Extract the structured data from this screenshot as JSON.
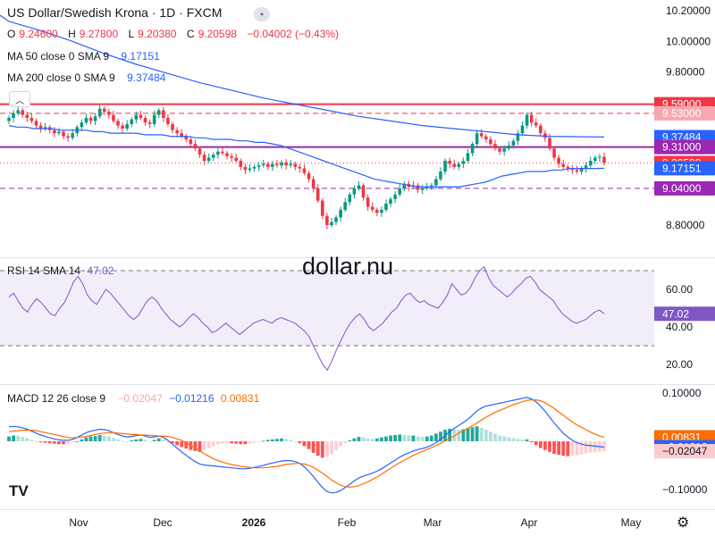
{
  "header": {
    "title": "US Dollar/Swedish Krona · 1D · FXCM",
    "ohlc": {
      "o_label": "O",
      "o": "9.24600",
      "h_label": "H",
      "h": "9.27800",
      "l_label": "L",
      "l": "9.20380",
      "c_label": "C",
      "c": "9.20598",
      "change": "−0.04002 (−0.43%)"
    },
    "ma50": {
      "label": "MA 50 close 0 SMA 9",
      "value": "9.17151"
    },
    "ma200": {
      "label": "MA 200 close 0 SMA 9",
      "value": "9.37484"
    }
  },
  "watermark": "dollar.nu",
  "logo_text": "TV",
  "colors": {
    "up": "#089981",
    "down": "#f23645",
    "ma50": "#2962ff",
    "ma200": "#2962ff",
    "rsi": "#7e57c2",
    "macd": "#2962ff",
    "signal": "#ff6d00"
  },
  "chart_data": [
    {
      "type": "candlestick",
      "title": "US Dollar/Swedish Krona · 1D · FXCM",
      "ylim": [
        8.72,
        10.22
      ],
      "y_ticks": [
        "10.20000",
        "10.00000",
        "9.80000",
        "8.80000"
      ],
      "x_ticks": [
        "Nov",
        "Dec",
        "2026",
        "Feb",
        "Mar",
        "Apr",
        "May"
      ],
      "price_labels": [
        {
          "text": "9.59000",
          "value": 9.59,
          "color": "#f23645"
        },
        {
          "text": "9.53000",
          "value": 9.53,
          "color": "#f7a8ae"
        },
        {
          "text": "9.37484",
          "value": 9.37484,
          "color": "#2962ff"
        },
        {
          "text": "9.31000",
          "value": 9.31,
          "color": "#9c27b0"
        },
        {
          "text": "9.20598",
          "value": 9.20598,
          "color": "#f23645"
        },
        {
          "text": "9.17151",
          "value": 9.17151,
          "color": "#2962ff"
        },
        {
          "text": "9.04000",
          "value": 9.04,
          "color": "#9c27b0"
        }
      ],
      "levels": [
        {
          "value": 9.59,
          "style": "solid",
          "color": "#f23645"
        },
        {
          "value": 9.53,
          "style": "dashed",
          "color": "#f23645"
        },
        {
          "value": 9.31,
          "style": "solid",
          "color": "#9c27b0"
        },
        {
          "value": 9.20598,
          "style": "dotted",
          "color": "#f23645"
        },
        {
          "value": 9.04,
          "style": "dashed",
          "color": "#9c27b0"
        }
      ],
      "closes": [
        9.5,
        9.53,
        9.55,
        9.52,
        9.5,
        9.48,
        9.45,
        9.43,
        9.44,
        9.42,
        9.4,
        9.41,
        9.38,
        9.37,
        9.4,
        9.44,
        9.47,
        9.5,
        9.48,
        9.51,
        9.56,
        9.54,
        9.52,
        9.48,
        9.45,
        9.43,
        9.46,
        9.49,
        9.52,
        9.5,
        9.47,
        9.46,
        9.52,
        9.55,
        9.5,
        9.46,
        9.42,
        9.4,
        9.38,
        9.36,
        9.33,
        9.3,
        9.26,
        9.22,
        9.24,
        9.26,
        9.28,
        9.27,
        9.25,
        9.24,
        9.22,
        9.18,
        9.16,
        9.17,
        9.18,
        9.19,
        9.2,
        9.18,
        9.2,
        9.19,
        9.21,
        9.19,
        9.2,
        9.18,
        9.17,
        9.14,
        9.1,
        9.04,
        8.96,
        8.86,
        8.8,
        8.82,
        8.85,
        8.9,
        8.95,
        9.0,
        9.04,
        9.06,
        8.98,
        8.92,
        8.9,
        8.88,
        8.9,
        8.94,
        8.97,
        9.0,
        9.04,
        9.07,
        9.05,
        9.06,
        9.03,
        9.04,
        9.05,
        9.06,
        9.1,
        9.15,
        9.22,
        9.2,
        9.18,
        9.2,
        9.22,
        9.27,
        9.33,
        9.4,
        9.38,
        9.36,
        9.33,
        9.3,
        9.28,
        9.3,
        9.32,
        9.35,
        9.4,
        9.45,
        9.52,
        9.47,
        9.45,
        9.4,
        9.37,
        9.3,
        9.24,
        9.2,
        9.18,
        9.17,
        9.16,
        9.15,
        9.17,
        9.19,
        9.22,
        9.24,
        9.246,
        9.20598
      ],
      "ma50": [
        9.45,
        9.44,
        9.44,
        9.43,
        9.43,
        9.43,
        9.42,
        9.42,
        9.42,
        9.42,
        9.41,
        9.41,
        9.4,
        9.4,
        9.4,
        9.4,
        9.39,
        9.39,
        9.39,
        9.38,
        9.38,
        9.38,
        9.37,
        9.37,
        9.36,
        9.36,
        9.36,
        9.35,
        9.35,
        9.34,
        9.34,
        9.33,
        9.32,
        9.3,
        9.28,
        9.26,
        9.24,
        9.22,
        9.2,
        9.18,
        9.16,
        9.14,
        9.12,
        9.1,
        9.09,
        9.08,
        9.07,
        9.06,
        9.05,
        9.05,
        9.05,
        9.05,
        9.05,
        9.05,
        9.06,
        9.07,
        9.08,
        9.1,
        9.12,
        9.13,
        9.14,
        9.15,
        9.15,
        9.15,
        9.16,
        9.16,
        9.17,
        9.17,
        9.17,
        9.17,
        9.171
      ],
      "ma200": [
        10.13,
        10.07,
        10.0,
        9.92,
        9.85,
        9.79,
        9.73,
        9.68,
        9.63,
        9.59,
        9.55,
        9.51,
        9.48,
        9.45,
        9.43,
        9.41,
        9.39,
        9.38,
        9.377,
        9.375
      ],
      "ma200_x": [
        0,
        7,
        14,
        21,
        28,
        35,
        42,
        49,
        56,
        63,
        70,
        77,
        84,
        91,
        98,
        105,
        112,
        119,
        126,
        131
      ]
    },
    {
      "type": "line",
      "title": "RSI 14 SMA 14",
      "value_label": "47.02",
      "ylim": [
        10,
        80
      ],
      "y_ticks": [
        60,
        40,
        20
      ],
      "y_tick_labels": [
        "60.00",
        "40.00",
        "20.00"
      ],
      "band": [
        30,
        70
      ],
      "values": [
        56,
        58,
        54,
        50,
        48,
        52,
        55,
        53,
        50,
        47,
        46,
        50,
        53,
        58,
        64,
        67,
        63,
        57,
        54,
        52,
        56,
        60,
        58,
        55,
        52,
        49,
        46,
        44,
        46,
        50,
        54,
        56,
        54,
        50,
        47,
        44,
        42,
        40,
        42,
        45,
        47,
        45,
        42,
        40,
        37,
        38,
        40,
        42,
        40,
        38,
        36,
        38,
        40,
        42,
        43,
        44,
        43,
        42,
        44,
        45,
        44,
        43,
        42,
        40,
        38,
        35,
        30,
        25,
        20,
        17,
        22,
        28,
        33,
        38,
        42,
        45,
        47,
        44,
        40,
        38,
        40,
        42,
        45,
        48,
        50,
        54,
        57,
        58,
        55,
        53,
        54,
        52,
        51,
        50,
        53,
        57,
        63,
        60,
        57,
        58,
        61,
        66,
        70,
        72,
        66,
        62,
        60,
        58,
        56,
        58,
        61,
        63,
        66,
        67,
        64,
        60,
        58,
        56,
        54,
        50,
        47,
        45,
        43,
        42,
        43,
        44,
        46,
        48,
        49,
        47.02
      ]
    },
    {
      "type": "bar",
      "title": "MACD 12 26 close 9",
      "legend_values": {
        "histogram": "−0.02047",
        "macd": "−0.01216",
        "signal": "0.00831"
      },
      "ylim": [
        -0.13,
        0.115
      ],
      "y_ticks": [
        0.1,
        -0.1
      ],
      "y_tick_labels": [
        "0.10000",
        "−0.10000"
      ],
      "value_labels": [
        {
          "text": "0.00831",
          "value": 0.00831,
          "color": "#ff6d00"
        },
        {
          "text": "−0.01216",
          "value": -0.01216,
          "color": "#2962ff"
        },
        {
          "text": "−0.02047",
          "value": -0.02047,
          "color": "#fccbcd"
        }
      ],
      "histogram": [
        0.01,
        0.012,
        0.011,
        0.009,
        0.006,
        0.003,
        0.0,
        -0.002,
        -0.003,
        -0.004,
        -0.005,
        -0.006,
        -0.006,
        -0.005,
        -0.003,
        0.0,
        0.004,
        0.008,
        0.01,
        0.011,
        0.013,
        0.012,
        0.01,
        0.007,
        0.004,
        0.001,
        0.0,
        0.002,
        0.004,
        0.005,
        0.003,
        0.001,
        0.003,
        0.006,
        0.004,
        0.0,
        -0.004,
        -0.008,
        -0.012,
        -0.015,
        -0.018,
        -0.02,
        -0.022,
        -0.018,
        -0.014,
        -0.01,
        -0.007,
        -0.005,
        -0.004,
        -0.004,
        -0.005,
        -0.006,
        -0.006,
        -0.005,
        -0.003,
        -0.001,
        0.001,
        0.003,
        0.004,
        0.005,
        0.006,
        0.005,
        0.003,
        0.0,
        -0.004,
        -0.01,
        -0.016,
        -0.024,
        -0.03,
        -0.034,
        -0.032,
        -0.026,
        -0.018,
        -0.01,
        -0.004,
        0.002,
        0.006,
        0.009,
        0.008,
        0.006,
        0.005,
        0.006,
        0.008,
        0.01,
        0.012,
        0.013,
        0.014,
        0.013,
        0.012,
        0.012,
        0.01,
        0.009,
        0.01,
        0.012,
        0.016,
        0.02,
        0.024,
        0.026,
        0.025,
        0.024,
        0.025,
        0.027,
        0.029,
        0.031,
        0.028,
        0.024,
        0.02,
        0.016,
        0.012,
        0.01,
        0.008,
        0.006,
        0.005,
        0.004,
        0.004,
        -0.002,
        -0.008,
        -0.014,
        -0.018,
        -0.022,
        -0.026,
        -0.028,
        -0.03,
        -0.031,
        -0.03,
        -0.029,
        -0.027,
        -0.025,
        -0.023,
        -0.022,
        -0.021,
        -0.02047
      ],
      "macd_line": [
        0.03,
        0.031,
        0.03,
        0.028,
        0.025,
        0.021,
        0.017,
        0.013,
        0.01,
        0.007,
        0.005,
        0.003,
        0.002,
        0.002,
        0.004,
        0.008,
        0.013,
        0.018,
        0.021,
        0.023,
        0.025,
        0.024,
        0.022,
        0.018,
        0.014,
        0.011,
        0.009,
        0.01,
        0.012,
        0.013,
        0.011,
        0.008,
        0.009,
        0.011,
        0.008,
        0.002,
        -0.006,
        -0.014,
        -0.022,
        -0.029,
        -0.036,
        -0.042,
        -0.047,
        -0.049,
        -0.05,
        -0.051,
        -0.052,
        -0.053,
        -0.054,
        -0.055,
        -0.056,
        -0.057,
        -0.057,
        -0.056,
        -0.054,
        -0.052,
        -0.05,
        -0.047,
        -0.045,
        -0.043,
        -0.041,
        -0.04,
        -0.04,
        -0.042,
        -0.046,
        -0.053,
        -0.062,
        -0.073,
        -0.085,
        -0.096,
        -0.104,
        -0.107,
        -0.106,
        -0.102,
        -0.096,
        -0.089,
        -0.082,
        -0.076,
        -0.072,
        -0.069,
        -0.066,
        -0.062,
        -0.057,
        -0.051,
        -0.045,
        -0.039,
        -0.033,
        -0.028,
        -0.024,
        -0.02,
        -0.017,
        -0.015,
        -0.012,
        -0.008,
        -0.003,
        0.004,
        0.012,
        0.02,
        0.027,
        0.033,
        0.039,
        0.046,
        0.054,
        0.063,
        0.069,
        0.073,
        0.075,
        0.077,
        0.079,
        0.081,
        0.083,
        0.085,
        0.087,
        0.089,
        0.091,
        0.088,
        0.082,
        0.073,
        0.062,
        0.05,
        0.038,
        0.027,
        0.017,
        0.009,
        0.002,
        -0.003,
        -0.006,
        -0.008,
        -0.009,
        -0.01,
        -0.011,
        -0.01216
      ],
      "signal_line": [
        0.02,
        0.021,
        0.022,
        0.023,
        0.023,
        0.023,
        0.022,
        0.02,
        0.018,
        0.016,
        0.014,
        0.012,
        0.01,
        0.008,
        0.007,
        0.008,
        0.009,
        0.01,
        0.012,
        0.014,
        0.016,
        0.017,
        0.018,
        0.018,
        0.017,
        0.016,
        0.015,
        0.014,
        0.014,
        0.013,
        0.013,
        0.012,
        0.012,
        0.011,
        0.011,
        0.01,
        0.008,
        0.005,
        0.002,
        -0.003,
        -0.008,
        -0.014,
        -0.02,
        -0.026,
        -0.031,
        -0.036,
        -0.04,
        -0.043,
        -0.046,
        -0.048,
        -0.05,
        -0.052,
        -0.053,
        -0.054,
        -0.055,
        -0.055,
        -0.055,
        -0.054,
        -0.053,
        -0.052,
        -0.05,
        -0.048,
        -0.047,
        -0.046,
        -0.046,
        -0.047,
        -0.05,
        -0.054,
        -0.06,
        -0.066,
        -0.073,
        -0.08,
        -0.086,
        -0.091,
        -0.094,
        -0.095,
        -0.094,
        -0.092,
        -0.088,
        -0.084,
        -0.079,
        -0.074,
        -0.068,
        -0.062,
        -0.056,
        -0.05,
        -0.044,
        -0.039,
        -0.034,
        -0.029,
        -0.025,
        -0.021,
        -0.017,
        -0.013,
        -0.009,
        -0.004,
        0.001,
        0.006,
        0.011,
        0.017,
        0.022,
        0.027,
        0.032,
        0.038,
        0.044,
        0.05,
        0.055,
        0.06,
        0.064,
        0.068,
        0.072,
        0.076,
        0.079,
        0.082,
        0.085,
        0.086,
        0.086,
        0.084,
        0.08,
        0.074,
        0.068,
        0.061,
        0.054,
        0.047,
        0.04,
        0.034,
        0.029,
        0.024,
        0.019,
        0.015,
        0.011,
        0.00831
      ]
    }
  ]
}
